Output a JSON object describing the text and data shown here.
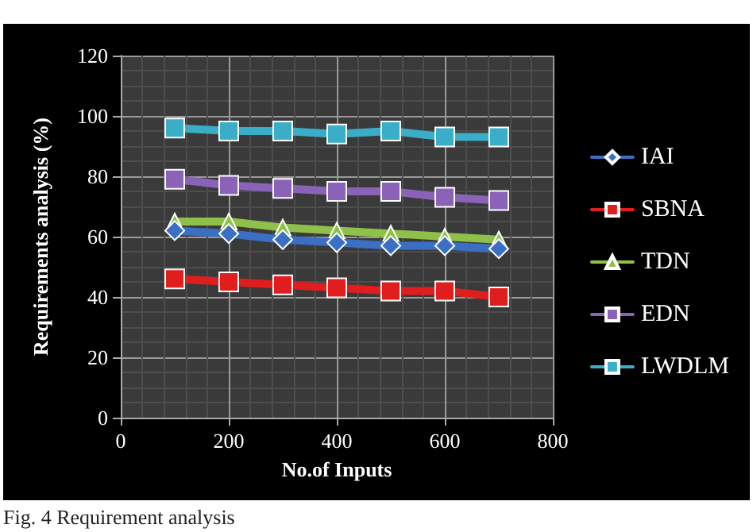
{
  "chart_data": {
    "type": "line",
    "xlabel": "No.of Inputs",
    "ylabel": "Requirements analysis (%)",
    "annotations": [
      "Fig. 4   Requirement analysis"
    ],
    "x": [
      100,
      200,
      300,
      400,
      500,
      600,
      700
    ],
    "xlim": [
      0,
      800
    ],
    "xticks": [
      0,
      200,
      400,
      600,
      800
    ],
    "ylim": [
      0,
      120
    ],
    "yticks": [
      0,
      20,
      40,
      60,
      80,
      100,
      120
    ],
    "grid": true,
    "legend": "right",
    "series": [
      {
        "name": "IAI",
        "color": "#3b6fc4",
        "marker": "diamond",
        "values": [
          62,
          61,
          59,
          58,
          57,
          57,
          56
        ]
      },
      {
        "name": "SBNA",
        "color": "#e01e1e",
        "marker": "square",
        "values": [
          46,
          45,
          44,
          43,
          42,
          42,
          40
        ]
      },
      {
        "name": "TDN",
        "color": "#8fc04a",
        "marker": "triangle",
        "values": [
          65,
          65,
          63,
          62,
          61,
          60,
          59
        ]
      },
      {
        "name": "EDN",
        "color": "#8a63b8",
        "marker": "square",
        "values": [
          79,
          77,
          76,
          75,
          75,
          73,
          72
        ]
      },
      {
        "name": "LWDLM",
        "color": "#3aaec8",
        "marker": "square",
        "values": [
          96,
          95,
          95,
          94,
          95,
          93,
          93
        ]
      }
    ]
  }
}
